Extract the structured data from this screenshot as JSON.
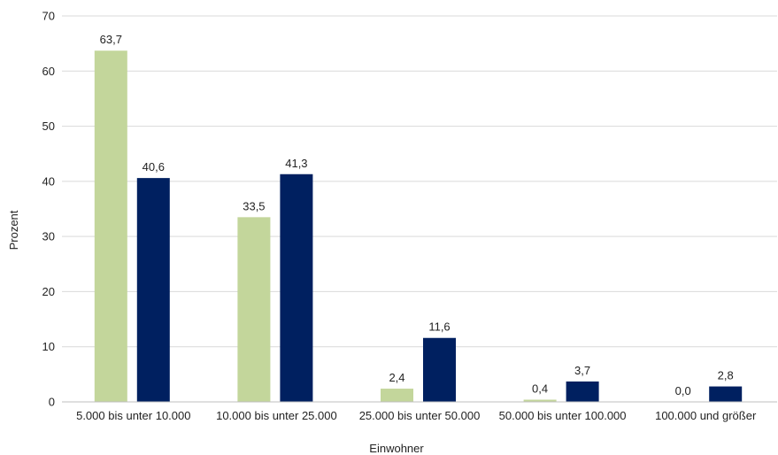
{
  "chart_data": {
    "type": "bar",
    "categories": [
      "5.000 bis unter 10.000",
      "10.000 bis unter 25.000",
      "25.000 bis unter 50.000",
      "50.000 bis unter 100.000",
      "100.000 und größer"
    ],
    "series": [
      {
        "values": [
          63.7,
          33.5,
          2.4,
          0.4,
          0.0
        ],
        "labels": [
          "63,7",
          "33,5",
          "2,4",
          "0,4",
          "0,0"
        ],
        "color": "#c3d69b"
      },
      {
        "values": [
          40.6,
          41.3,
          11.6,
          3.7,
          2.8
        ],
        "labels": [
          "40,6",
          "41,3",
          "11,6",
          "3,7",
          "2,8"
        ],
        "color": "#002060"
      }
    ],
    "xlabel": "Einwohner",
    "ylabel": "Prozent",
    "ylim": [
      0,
      70
    ],
    "yticks": [
      "0",
      "10",
      "20",
      "30",
      "40",
      "50",
      "60",
      "70"
    ],
    "grid": true,
    "legend": "none"
  }
}
